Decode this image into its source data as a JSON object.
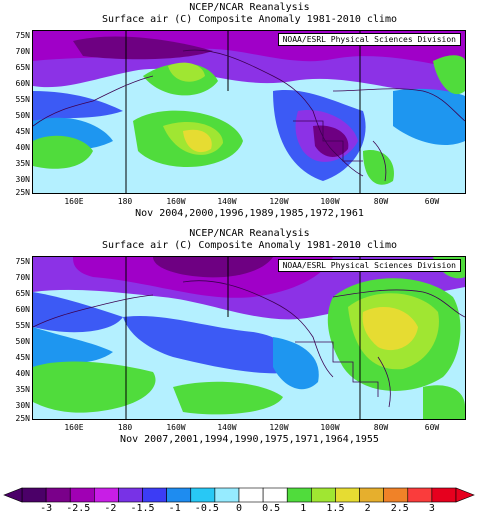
{
  "panels": [
    {
      "title1": "NCEP/NCAR Reanalysis",
      "title2": "Surface air (C) Composite Anomaly 1981-2010 climo",
      "credit": "NOAA/ESRL Physical Sciences Division",
      "years": "Nov 2004,2000,1996,1989,1985,1972,1961"
    },
    {
      "title1": "NCEP/NCAR Reanalysis",
      "title2": "Surface air (C) Composite Anomaly 1981-2010 climo",
      "credit": "NOAA/ESRL Physical Sciences Division",
      "years": "Nov 2007,2001,1994,1990,1975,1971,1964,1955"
    }
  ],
  "lat_labels": [
    "75N",
    "70N",
    "65N",
    "60N",
    "55N",
    "50N",
    "45N",
    "40N",
    "35N",
    "30N",
    "25N"
  ],
  "lon_labels": [
    "160E",
    "180",
    "160W",
    "140W",
    "120W",
    "100W",
    "80W",
    "60W"
  ],
  "colorbar": {
    "labels": [
      "-3",
      "-2.5",
      "-2",
      "-1.5",
      "-1",
      "-0.5",
      "0",
      "0.5",
      "1",
      "1.5",
      "2",
      "2.5",
      "3"
    ],
    "colors": [
      "#4b0068",
      "#7a008a",
      "#a000b4",
      "#c81ee6",
      "#7832e6",
      "#3c3cf5",
      "#1e8cf0",
      "#28c8f5",
      "#96ebff",
      "#ffffff",
      "#ffffff",
      "#50dc3c",
      "#a0e632",
      "#e6dc32",
      "#e6af2d",
      "#f08228",
      "#fa3c3c",
      "#e6001e"
    ]
  },
  "map_colors": {
    "deep_purple": "#6e0082",
    "purple": "#a000c8",
    "violet": "#8c32e6",
    "blue": "#3c5af5",
    "sky": "#1e96f0",
    "cyan": "#46d2fa",
    "pale_cyan": "#b4f0ff",
    "green": "#50dc3c",
    "yellow_green": "#a0e632",
    "yellow": "#e6dc32",
    "coast": "#3c0050"
  }
}
